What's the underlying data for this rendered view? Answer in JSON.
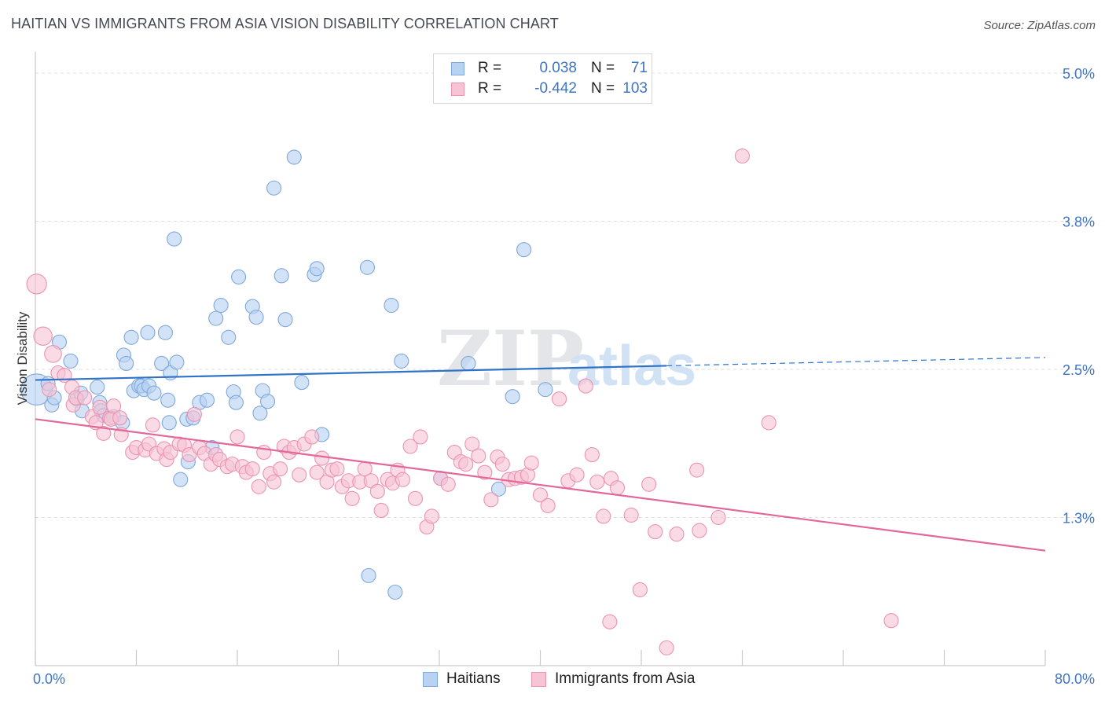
{
  "title": "HAITIAN VS IMMIGRANTS FROM ASIA VISION DISABILITY CORRELATION CHART",
  "source": "Source: ZipAtlas.com",
  "watermark": {
    "zip": "ZIP",
    "atlas": "atlas"
  },
  "colors": {
    "blue_fill": "#b8d2f2",
    "blue_stroke": "#7fa8dc",
    "blue_line": "#2f73c9",
    "pink_fill": "#f7c4d4",
    "pink_stroke": "#ec93b1",
    "pink_line": "#e2679a",
    "tick_text": "#3e74c4",
    "grid": "#dddddd"
  },
  "legend": {
    "rows": [
      {
        "r_label": "R =",
        "r_value": "0.038",
        "n_label": "N =",
        "n_value": "71"
      },
      {
        "r_label": "R =",
        "r_value": "-0.442",
        "n_label": "N =",
        "n_value": "103"
      }
    ]
  },
  "bottom_legend": [
    "Haitians",
    "Immigrants from Asia"
  ],
  "chart_data": {
    "type": "scatter",
    "xlabel": "",
    "ylabel": "Vision Disability",
    "xlim": [
      0,
      80
    ],
    "ylim": [
      0.0,
      5.0
    ],
    "x_tick_labels": [
      {
        "value": 0,
        "label": "0.0%"
      },
      {
        "value": 80,
        "label": "80.0%"
      }
    ],
    "y_tick_labels": [
      {
        "value": 1.25,
        "label": "1.3%"
      },
      {
        "value": 2.5,
        "label": "2.5%"
      },
      {
        "value": 3.75,
        "label": "3.8%"
      },
      {
        "value": 5.0,
        "label": "5.0%"
      }
    ],
    "grid": true,
    "legend_position": "top-center",
    "series": [
      {
        "name": "Haitians",
        "trend": {
          "x0": 0,
          "y0": 2.41,
          "x1": 50,
          "y1": 2.53,
          "dashed_to_x": 80,
          "dashed_to_y": 2.6
        },
        "points": [
          [
            0.1,
            2.33,
            22
          ],
          [
            1.0,
            2.38,
            10
          ],
          [
            1.3,
            2.2,
            10
          ],
          [
            1.5,
            2.26,
            10
          ],
          [
            1.9,
            2.73,
            10
          ],
          [
            2.8,
            2.57,
            10
          ],
          [
            3.3,
            2.25,
            10
          ],
          [
            3.6,
            2.3,
            10
          ],
          [
            3.7,
            2.15,
            10
          ],
          [
            4.9,
            2.35,
            10
          ],
          [
            5.1,
            2.22,
            10
          ],
          [
            5.2,
            2.15,
            10
          ],
          [
            5.4,
            2.11,
            10
          ],
          [
            6.2,
            2.1,
            10
          ],
          [
            6.9,
            2.05,
            10
          ],
          [
            7.0,
            2.62,
            10
          ],
          [
            7.2,
            2.55,
            10
          ],
          [
            7.6,
            2.77,
            10
          ],
          [
            7.8,
            2.32,
            10
          ],
          [
            8.2,
            2.36,
            10
          ],
          [
            8.4,
            2.36,
            10
          ],
          [
            8.6,
            2.33,
            10
          ],
          [
            8.9,
            2.81,
            10
          ],
          [
            9.0,
            2.36,
            10
          ],
          [
            9.4,
            2.3,
            10
          ],
          [
            10.0,
            2.55,
            10
          ],
          [
            10.3,
            2.81,
            10
          ],
          [
            10.5,
            2.24,
            10
          ],
          [
            10.6,
            2.05,
            10
          ],
          [
            10.7,
            2.47,
            10
          ],
          [
            11.0,
            3.6,
            10
          ],
          [
            11.2,
            2.56,
            10
          ],
          [
            11.5,
            1.57,
            10
          ],
          [
            12.0,
            2.08,
            10
          ],
          [
            12.1,
            1.72,
            10
          ],
          [
            12.5,
            2.09,
            10
          ],
          [
            13.0,
            2.22,
            10
          ],
          [
            13.6,
            2.24,
            10
          ],
          [
            14.0,
            1.84,
            10
          ],
          [
            14.3,
            2.93,
            10
          ],
          [
            14.7,
            3.04,
            10
          ],
          [
            15.3,
            2.77,
            10
          ],
          [
            15.7,
            2.31,
            10
          ],
          [
            15.9,
            2.22,
            10
          ],
          [
            16.1,
            3.28,
            10
          ],
          [
            17.2,
            3.03,
            10
          ],
          [
            17.5,
            2.94,
            10
          ],
          [
            17.8,
            2.13,
            10
          ],
          [
            18.0,
            2.32,
            10
          ],
          [
            18.4,
            2.23,
            10
          ],
          [
            18.9,
            4.03,
            10
          ],
          [
            19.5,
            3.29,
            10
          ],
          [
            19.8,
            2.92,
            10
          ],
          [
            20.5,
            4.29,
            10
          ],
          [
            21.1,
            2.39,
            10
          ],
          [
            22.1,
            3.3,
            10
          ],
          [
            22.3,
            3.35,
            10
          ],
          [
            22.7,
            1.95,
            10
          ],
          [
            26.3,
            3.36,
            10
          ],
          [
            26.4,
            0.76,
            10
          ],
          [
            28.2,
            3.04,
            10
          ],
          [
            28.5,
            0.62,
            10
          ],
          [
            29.0,
            2.57,
            10
          ],
          [
            32.1,
            1.58,
            10
          ],
          [
            34.3,
            2.55,
            10
          ],
          [
            36.7,
            1.49,
            10
          ],
          [
            37.8,
            2.27,
            10
          ],
          [
            38.7,
            3.51,
            10
          ],
          [
            40.4,
            2.33,
            10
          ]
        ]
      },
      {
        "name": "Immigrants from Asia",
        "trend": {
          "x0": 0,
          "y0": 2.08,
          "x1": 80,
          "y1": 0.97
        },
        "points": [
          [
            0.1,
            3.22,
            14
          ],
          [
            0.6,
            2.78,
            13
          ],
          [
            1.1,
            2.33,
            10
          ],
          [
            1.4,
            2.63,
            12
          ],
          [
            1.8,
            2.47,
            10
          ],
          [
            2.3,
            2.45,
            10
          ],
          [
            2.9,
            2.35,
            10
          ],
          [
            3.0,
            2.2,
            10
          ],
          [
            3.2,
            2.26,
            10
          ],
          [
            3.9,
            2.26,
            10
          ],
          [
            4.5,
            2.1,
            10
          ],
          [
            4.8,
            2.05,
            10
          ],
          [
            5.1,
            2.18,
            10
          ],
          [
            5.4,
            1.96,
            10
          ],
          [
            5.9,
            2.09,
            10
          ],
          [
            6.0,
            2.08,
            10
          ],
          [
            6.2,
            2.19,
            10
          ],
          [
            6.7,
            2.09,
            10
          ],
          [
            6.8,
            1.95,
            10
          ],
          [
            7.7,
            1.8,
            10
          ],
          [
            8.0,
            1.84,
            10
          ],
          [
            8.7,
            1.82,
            10
          ],
          [
            9.0,
            1.87,
            10
          ],
          [
            9.3,
            2.03,
            10
          ],
          [
            9.6,
            1.79,
            10
          ],
          [
            10.2,
            1.83,
            10
          ],
          [
            10.4,
            1.74,
            10
          ],
          [
            10.7,
            1.8,
            10
          ],
          [
            11.4,
            1.87,
            10
          ],
          [
            11.8,
            1.86,
            10
          ],
          [
            12.2,
            1.78,
            10
          ],
          [
            12.6,
            2.12,
            10
          ],
          [
            13.0,
            1.84,
            10
          ],
          [
            13.4,
            1.79,
            10
          ],
          [
            13.9,
            1.7,
            10
          ],
          [
            14.3,
            1.78,
            10
          ],
          [
            14.6,
            1.74,
            10
          ],
          [
            15.2,
            1.68,
            10
          ],
          [
            15.6,
            1.7,
            10
          ],
          [
            16.0,
            1.93,
            10
          ],
          [
            16.4,
            1.68,
            10
          ],
          [
            16.7,
            1.63,
            10
          ],
          [
            17.2,
            1.66,
            10
          ],
          [
            17.7,
            1.51,
            10
          ],
          [
            18.1,
            1.8,
            10
          ],
          [
            18.6,
            1.62,
            10
          ],
          [
            18.9,
            1.55,
            10
          ],
          [
            19.4,
            1.66,
            10
          ],
          [
            19.7,
            1.85,
            10
          ],
          [
            20.1,
            1.8,
            10
          ],
          [
            20.5,
            1.84,
            10
          ],
          [
            20.9,
            1.61,
            10
          ],
          [
            21.3,
            1.87,
            10
          ],
          [
            21.9,
            1.93,
            10
          ],
          [
            22.3,
            1.63,
            10
          ],
          [
            22.7,
            1.75,
            10
          ],
          [
            23.1,
            1.55,
            10
          ],
          [
            23.5,
            1.65,
            10
          ],
          [
            23.9,
            1.66,
            10
          ],
          [
            24.3,
            1.51,
            10
          ],
          [
            24.8,
            1.56,
            10
          ],
          [
            25.1,
            1.41,
            10
          ],
          [
            25.7,
            1.55,
            10
          ],
          [
            26.1,
            1.66,
            10
          ],
          [
            26.6,
            1.56,
            10
          ],
          [
            27.1,
            1.47,
            10
          ],
          [
            27.4,
            1.31,
            10
          ],
          [
            27.9,
            1.57,
            10
          ],
          [
            28.3,
            1.54,
            10
          ],
          [
            28.7,
            1.65,
            10
          ],
          [
            29.1,
            1.57,
            10
          ],
          [
            29.7,
            1.85,
            10
          ],
          [
            30.1,
            1.41,
            10
          ],
          [
            30.5,
            1.93,
            10
          ],
          [
            31.0,
            1.17,
            10
          ],
          [
            31.4,
            1.26,
            10
          ],
          [
            32.1,
            1.58,
            10
          ],
          [
            32.7,
            1.53,
            10
          ],
          [
            33.2,
            1.8,
            10
          ],
          [
            33.7,
            1.72,
            10
          ],
          [
            34.1,
            1.7,
            10
          ],
          [
            34.6,
            1.87,
            10
          ],
          [
            35.1,
            1.77,
            10
          ],
          [
            35.6,
            1.63,
            10
          ],
          [
            36.1,
            1.4,
            10
          ],
          [
            36.6,
            1.76,
            10
          ],
          [
            37.0,
            1.7,
            10
          ],
          [
            37.5,
            1.57,
            10
          ],
          [
            38.0,
            1.58,
            10
          ],
          [
            38.5,
            1.59,
            10
          ],
          [
            39.0,
            1.61,
            10
          ],
          [
            39.3,
            1.71,
            10
          ],
          [
            40.0,
            1.44,
            10
          ],
          [
            40.6,
            1.35,
            10
          ],
          [
            41.5,
            2.25,
            10
          ],
          [
            42.2,
            1.56,
            10
          ],
          [
            42.9,
            1.61,
            10
          ],
          [
            43.6,
            2.36,
            10
          ],
          [
            44.1,
            1.78,
            10
          ],
          [
            44.5,
            1.55,
            10
          ],
          [
            45.0,
            1.26,
            10
          ],
          [
            45.5,
            0.37,
            10
          ],
          [
            45.6,
            1.58,
            10
          ],
          [
            46.1,
            1.5,
            10
          ],
          [
            47.2,
            1.27,
            10
          ],
          [
            47.9,
            0.64,
            10
          ],
          [
            48.6,
            1.53,
            10
          ],
          [
            49.1,
            1.13,
            10
          ],
          [
            50.0,
            0.15,
            10
          ],
          [
            50.8,
            1.11,
            10
          ],
          [
            52.4,
            1.65,
            10
          ],
          [
            52.6,
            1.14,
            10
          ],
          [
            54.1,
            1.25,
            10
          ],
          [
            56.0,
            4.3,
            10
          ],
          [
            58.1,
            2.05,
            10
          ],
          [
            67.8,
            0.38,
            10
          ]
        ]
      }
    ]
  }
}
